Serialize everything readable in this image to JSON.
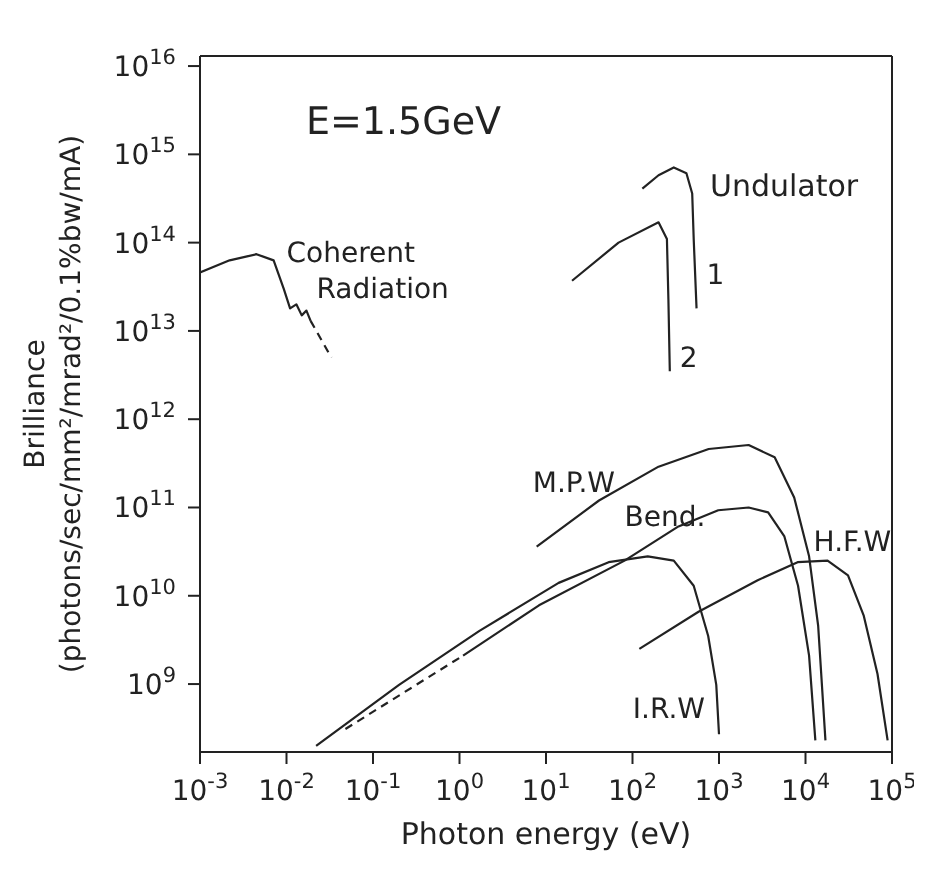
{
  "chart_data": {
    "type": "line",
    "xlabel": "Photon energy (eV)",
    "ylabel": "Brilliance\n(photons/sec/mm²/mrad²/0.1%bw/mA)",
    "log": "xy",
    "grid": false,
    "legend": false,
    "marker": "none",
    "xlim": [
      0.001,
      100000
    ],
    "ylim": [
      170000000,
      13000000000000000
    ],
    "xticks": [
      {
        "value": 0.001,
        "label": "10$^{-3}$"
      },
      {
        "value": 0.01,
        "label": "10$^{-2}$"
      },
      {
        "value": 0.1,
        "label": "10$^{-1}$"
      },
      {
        "value": 1,
        "label": "10$^{0}$"
      },
      {
        "value": 10,
        "label": "10$^{1}$"
      },
      {
        "value": 100,
        "label": "10$^{2}$"
      },
      {
        "value": 1000,
        "label": "10$^{3}$"
      },
      {
        "value": 10000,
        "label": "10$^{4}$"
      },
      {
        "value": 100000,
        "label": "10$^{5}$"
      }
    ],
    "yticks": [
      {
        "value": 1000000000,
        "label": "10$^{9}$"
      },
      {
        "value": 10000000000,
        "label": "10$^{10}$"
      },
      {
        "value": 100000000000,
        "label": "10$^{11}$"
      },
      {
        "value": 1000000000000,
        "label": "10$^{12}$"
      },
      {
        "value": 10000000000000,
        "label": "10$^{13}$"
      },
      {
        "value": 100000000000000,
        "label": "10$^{14}$"
      },
      {
        "value": 1000000000000000,
        "label": "10$^{15}$"
      },
      {
        "value": 10000000000000000,
        "label": "10$^{16}$"
      }
    ],
    "annotations": [
      "E=1.5GeV",
      "Undulator"
    ],
    "series": [
      {
        "name": "Coherent Radiation",
        "color": "#222222",
        "line_style": "solid",
        "x": [
          0.001,
          0.0022,
          0.0045,
          0.0071,
          0.0093,
          0.011,
          0.013,
          0.015,
          0.017,
          0.019
        ],
        "values": [
          46000000000000.0,
          63000000000000.0,
          74000000000000.0,
          63000000000000.0,
          30000000000000.0,
          18000000000000.0,
          20000000000000.0,
          15000000000000.0,
          17000000000000.0,
          13000000000000.0
        ]
      },
      {
        "color": "#222222",
        "line_style": "dashed",
        "x": [
          0.019,
          0.033
        ],
        "values": [
          13000000000000.0,
          5000000000000.0
        ]
      },
      {
        "name": "1",
        "color": "#222222",
        "line_style": "solid",
        "x": [
          130,
          200,
          300,
          420,
          490,
          510,
          550
        ],
        "values": [
          410000000000000.0,
          580000000000000.0,
          710000000000000.0,
          610000000000000.0,
          360000000000000.0,
          110000000000000.0,
          18000000000000.0
        ]
      },
      {
        "name": "2",
        "color": "#222222",
        "line_style": "solid",
        "x": [
          20,
          69,
          200,
          250,
          260,
          270
        ],
        "values": [
          37000000000000.0,
          100000000000000.0,
          170000000000000.0,
          110000000000000.0,
          23000000000000.0,
          3500000000000.0
        ]
      },
      {
        "name": "M.P.W",
        "color": "#222222",
        "line_style": "solid",
        "x": [
          7.8,
          41,
          200,
          760,
          2200,
          4400,
          7400,
          11000,
          14000,
          17000
        ],
        "values": [
          36000000000.0,
          120000000000.0,
          290000000000.0,
          460000000000.0,
          510000000000.0,
          370000000000.0,
          130000000000.0,
          28000000000.0,
          4600000000.0,
          230000000.0
        ]
      },
      {
        "name": "Bend.",
        "color": "#222222",
        "line_style": "solid",
        "x": [
          1.1,
          8.3,
          81,
          340,
          980,
          2200,
          3700,
          5700,
          8200,
          11000,
          13000
        ],
        "values": [
          2100000000.0,
          7800000000.0,
          25000000000.0,
          61000000000.0,
          93000000000.0,
          100000000000.0,
          88000000000.0,
          47000000000.0,
          13000000000.0,
          2100000000.0,
          230000000.0
        ]
      },
      {
        "color": "#222222",
        "line_style": "dashed",
        "x": [
          0.048,
          1.1
        ],
        "values": [
          310000000.0,
          2100000000.0
        ]
      },
      {
        "name": "H.F.W",
        "color": "#222222",
        "line_style": "solid",
        "x": [
          120,
          580,
          2800,
          8100,
          18000,
          31000,
          47000,
          68000,
          89000
        ],
        "values": [
          2500000000.0,
          6600000000.0,
          15000000000.0,
          24000000000.0,
          25000000000.0,
          17000000000.0,
          6000000000.0,
          1300000000.0,
          230000000.0
        ]
      },
      {
        "name": "I.R.W",
        "color": "#222222",
        "line_style": "solid",
        "x": [
          0.022,
          0.2,
          1.7,
          14,
          53,
          150,
          300,
          510,
          750,
          930,
          1000
        ],
        "values": [
          200000000.0,
          980000000.0,
          4000000000.0,
          14000000000.0,
          24000000000.0,
          28000000000.0,
          25000000000.0,
          13000000000.0,
          3500000000.0,
          980000000.0,
          270000000.0
        ]
      }
    ]
  }
}
